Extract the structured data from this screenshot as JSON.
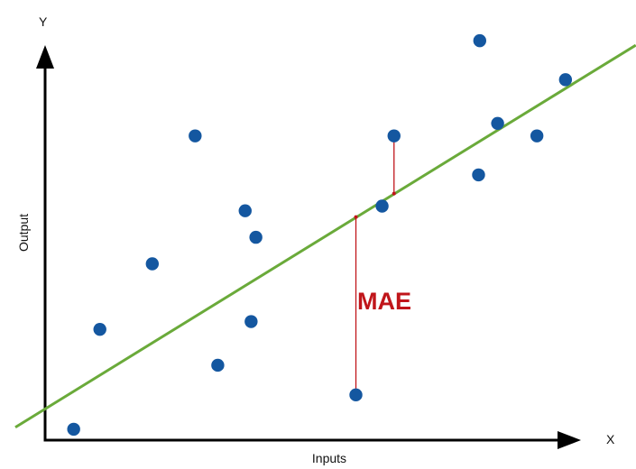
{
  "diagram": {
    "x_axis_letter": "X",
    "y_axis_letter": "Y",
    "x_axis_title": "Inputs",
    "y_axis_title": "Output",
    "annotation": "MAE"
  },
  "colors": {
    "axis": "#000000",
    "points": "#1457a0",
    "regression_line": "#6aaa3a",
    "error_lines": "#c0151a",
    "annotation_text": "#c0151a"
  },
  "chart_data": {
    "type": "scatter",
    "points": [
      {
        "x": 2.4,
        "y": 0.7
      },
      {
        "x": 4.6,
        "y": 7.1
      },
      {
        "x": 9.0,
        "y": 11.3
      },
      {
        "x": 12.6,
        "y": 19.5
      },
      {
        "x": 14.5,
        "y": 4.8
      },
      {
        "x": 16.8,
        "y": 14.7
      },
      {
        "x": 17.3,
        "y": 7.6
      },
      {
        "x": 17.7,
        "y": 13.0
      },
      {
        "x": 26.1,
        "y": 2.9
      },
      {
        "x": 28.3,
        "y": 15.0
      },
      {
        "x": 29.3,
        "y": 19.5
      },
      {
        "x": 36.4,
        "y": 17.0
      },
      {
        "x": 36.5,
        "y": 25.6
      },
      {
        "x": 38.0,
        "y": 20.3
      },
      {
        "x": 41.3,
        "y": 19.5
      },
      {
        "x": 43.7,
        "y": 23.1
      }
    ],
    "regression_line": {
      "intercept": 2.0,
      "slope": 0.47
    },
    "error_segments": [
      {
        "x": 26.1,
        "y_point": 2.9,
        "y_fit": 14.3
      },
      {
        "x": 29.3,
        "y_point": 19.5,
        "y_fit": 15.8
      }
    ],
    "xlim": [
      0,
      46
    ],
    "ylim": [
      0,
      25
    ]
  }
}
